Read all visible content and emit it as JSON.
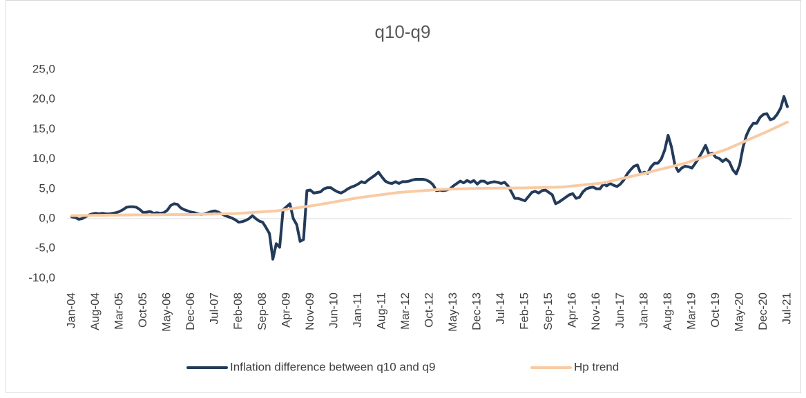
{
  "chart_data": {
    "type": "line",
    "title": "q10-q9",
    "categories": [
      "Jan-04",
      null,
      null,
      null,
      null,
      null,
      null,
      "Aug-04",
      null,
      null,
      null,
      null,
      null,
      null,
      "Mar-05",
      null,
      null,
      null,
      null,
      null,
      null,
      "Oct-05",
      null,
      null,
      null,
      null,
      null,
      null,
      "May-06",
      null,
      null,
      null,
      null,
      null,
      null,
      "Dec-06",
      null,
      null,
      null,
      null,
      null,
      null,
      "Jul-07",
      null,
      null,
      null,
      null,
      null,
      null,
      "Feb-08",
      null,
      null,
      null,
      null,
      null,
      null,
      "Sep-08",
      null,
      null,
      null,
      null,
      null,
      null,
      "Apr-09",
      null,
      null,
      null,
      null,
      null,
      null,
      "Nov-09",
      null,
      null,
      null,
      null,
      null,
      null,
      "Jun-10",
      null,
      null,
      null,
      null,
      null,
      null,
      "Jan-11",
      null,
      null,
      null,
      null,
      null,
      null,
      "Aug-11",
      null,
      null,
      null,
      null,
      null,
      null,
      "Mar-12",
      null,
      null,
      null,
      null,
      null,
      null,
      "Oct-12",
      null,
      null,
      null,
      null,
      null,
      null,
      "May-13",
      null,
      null,
      null,
      null,
      null,
      null,
      "Dec-13",
      null,
      null,
      null,
      null,
      null,
      null,
      "Jul-14",
      null,
      null,
      null,
      null,
      null,
      null,
      "Feb-15",
      null,
      null,
      null,
      null,
      null,
      null,
      "Sep-15",
      null,
      null,
      null,
      null,
      null,
      null,
      "Apr-16",
      null,
      null,
      null,
      null,
      null,
      null,
      "Nov-16",
      null,
      null,
      null,
      null,
      null,
      null,
      "Jun-17",
      null,
      null,
      null,
      null,
      null,
      null,
      "Jan-18",
      null,
      null,
      null,
      null,
      null,
      null,
      "Aug-18",
      null,
      null,
      null,
      null,
      null,
      null,
      "Mar-19",
      null,
      null,
      null,
      null,
      null,
      null,
      "Oct-19",
      null,
      null,
      null,
      null,
      null,
      null,
      "May-20",
      null,
      null,
      null,
      null,
      null,
      null,
      "Dec-20",
      null,
      null,
      null,
      null,
      null,
      null,
      "Jul-21"
    ],
    "series": [
      {
        "name": "Inflation difference between q10 and q9",
        "color": "#233b5a",
        "values": [
          0.3,
          0.2,
          -0.1,
          0.0,
          0.3,
          0.6,
          0.8,
          0.9,
          0.8,
          0.9,
          0.8,
          0.8,
          0.9,
          1.0,
          1.2,
          1.5,
          1.9,
          2.0,
          2.0,
          1.9,
          1.5,
          1.0,
          1.1,
          1.2,
          0.9,
          1.0,
          0.9,
          1.0,
          1.4,
          2.2,
          2.5,
          2.4,
          1.8,
          1.5,
          1.3,
          1.1,
          1.0,
          0.8,
          0.7,
          0.8,
          1.0,
          1.2,
          1.3,
          1.1,
          0.8,
          0.5,
          0.3,
          0.1,
          -0.2,
          -0.6,
          -0.5,
          -0.3,
          0.0,
          0.5,
          0.0,
          -0.4,
          -0.6,
          -1.5,
          -2.5,
          -6.8,
          -4.2,
          -4.8,
          1.5,
          2.0,
          2.5,
          0.0,
          -1.0,
          -3.8,
          -3.5,
          4.7,
          4.8,
          4.3,
          4.4,
          4.5,
          5.0,
          5.2,
          5.2,
          4.8,
          4.5,
          4.3,
          4.6,
          5.0,
          5.3,
          5.5,
          5.8,
          6.2,
          6.0,
          6.5,
          6.9,
          7.3,
          7.8,
          7.0,
          6.3,
          6.0,
          5.9,
          6.2,
          5.9,
          6.2,
          6.2,
          6.3,
          6.5,
          6.6,
          6.6,
          6.6,
          6.5,
          6.2,
          5.7,
          4.7,
          4.8,
          4.7,
          4.8,
          5.0,
          5.5,
          5.9,
          6.3,
          6.0,
          6.4,
          6.1,
          6.4,
          5.8,
          6.3,
          6.3,
          5.9,
          6.1,
          6.2,
          6.1,
          5.9,
          6.1,
          5.5,
          4.5,
          3.4,
          3.4,
          3.2,
          3.0,
          3.7,
          4.4,
          4.6,
          4.3,
          4.7,
          4.8,
          4.4,
          4.0,
          2.5,
          2.8,
          3.2,
          3.6,
          4.0,
          4.2,
          3.4,
          3.6,
          4.5,
          5.0,
          5.2,
          5.3,
          5.0,
          5.0,
          5.8,
          5.5,
          5.9,
          5.6,
          5.4,
          5.8,
          6.5,
          7.5,
          8.2,
          8.8,
          9.0,
          7.5,
          7.8,
          7.6,
          8.7,
          9.3,
          9.3,
          10.0,
          11.5,
          14.0,
          12.0,
          9.0,
          7.9,
          8.5,
          8.8,
          8.7,
          8.5,
          9.3,
          10.2,
          11.2,
          12.3,
          10.8,
          11.0,
          10.3,
          10.1,
          9.6,
          10.0,
          9.5,
          8.2,
          7.5,
          9.0,
          12.0,
          14.0,
          15.2,
          16.0,
          16.0,
          17.0,
          17.5,
          17.6,
          16.6,
          16.8,
          17.5,
          18.5,
          20.5,
          18.8
        ]
      },
      {
        "name": "Hp trend",
        "color": "#f8cba4",
        "values": [
          0.5,
          0.51,
          0.52,
          0.52,
          0.53,
          0.54,
          0.55,
          0.56,
          0.57,
          0.57,
          0.58,
          0.59,
          0.6,
          0.6,
          0.61,
          0.61,
          0.62,
          0.62,
          0.63,
          0.63,
          0.63,
          0.64,
          0.64,
          0.65,
          0.65,
          0.65,
          0.66,
          0.66,
          0.67,
          0.67,
          0.68,
          0.68,
          0.68,
          0.69,
          0.69,
          0.7,
          0.7,
          0.71,
          0.73,
          0.74,
          0.75,
          0.76,
          0.78,
          0.79,
          0.8,
          0.81,
          0.83,
          0.84,
          0.85,
          0.89,
          0.93,
          0.96,
          1.0,
          1.04,
          1.08,
          1.11,
          1.15,
          1.19,
          1.23,
          1.26,
          1.3,
          1.38,
          1.47,
          1.55,
          1.63,
          1.72,
          1.8,
          1.88,
          1.97,
          2.05,
          2.13,
          2.22,
          2.3,
          2.4,
          2.5,
          2.6,
          2.7,
          2.8,
          2.9,
          3.0,
          3.1,
          3.2,
          3.3,
          3.4,
          3.5,
          3.58,
          3.65,
          3.73,
          3.8,
          3.88,
          3.95,
          4.03,
          4.1,
          4.18,
          4.25,
          4.33,
          4.4,
          4.44,
          4.48,
          4.53,
          4.57,
          4.61,
          4.65,
          4.69,
          4.73,
          4.78,
          4.82,
          4.86,
          4.9,
          4.92,
          4.93,
          4.95,
          4.97,
          4.98,
          5.0,
          5.02,
          5.03,
          5.05,
          5.07,
          5.08,
          5.1,
          5.1,
          5.11,
          5.11,
          5.12,
          5.12,
          5.13,
          5.13,
          5.13,
          5.14,
          5.14,
          5.15,
          5.15,
          5.16,
          5.18,
          5.19,
          5.2,
          5.21,
          5.23,
          5.24,
          5.25,
          5.26,
          5.28,
          5.29,
          5.3,
          5.36,
          5.42,
          5.48,
          5.53,
          5.59,
          5.65,
          5.71,
          5.77,
          5.83,
          5.88,
          5.94,
          6.0,
          6.13,
          6.27,
          6.4,
          6.53,
          6.67,
          6.8,
          6.93,
          7.07,
          7.2,
          7.33,
          7.47,
          7.6,
          7.74,
          7.88,
          8.03,
          8.17,
          8.31,
          8.45,
          8.59,
          8.73,
          8.88,
          9.02,
          9.16,
          9.3,
          9.49,
          9.68,
          9.88,
          10.07,
          10.26,
          10.45,
          10.64,
          10.83,
          11.03,
          11.22,
          11.41,
          11.6,
          11.85,
          12.1,
          12.35,
          12.6,
          12.85,
          13.1,
          13.35,
          13.6,
          13.85,
          14.1,
          14.35,
          14.6,
          14.87,
          15.13,
          15.4,
          15.67,
          15.93,
          16.2
        ]
      }
    ],
    "ylim": [
      -10,
      25
    ],
    "yticks": [
      {
        "value": -10,
        "label": "-10,0"
      },
      {
        "value": -5,
        "label": "-5,0"
      },
      {
        "value": 0,
        "label": "0,0"
      },
      {
        "value": 5,
        "label": "5,0"
      },
      {
        "value": 10,
        "label": "10,0"
      },
      {
        "value": 15,
        "label": "15,0"
      },
      {
        "value": 20,
        "label": "20,0"
      },
      {
        "value": 25,
        "label": "25,0"
      }
    ],
    "grid": false,
    "legend": "bottom"
  }
}
